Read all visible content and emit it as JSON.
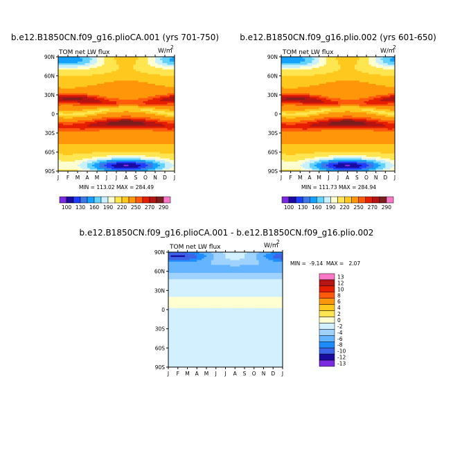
{
  "chart_data": [
    {
      "type": "heatmap",
      "title": "b.e12.B1850CN.f09_g16.plioCA.001 (yrs 701-750)",
      "left_label": "TOM net LW flux",
      "units_label": "W/m",
      "units_sup": "2",
      "x_ticks": [
        "J",
        "F",
        "M",
        "A",
        "M",
        "J",
        "J",
        "A",
        "S",
        "O",
        "N",
        "D",
        "J"
      ],
      "y_ticks": [
        "90N",
        "60N",
        "30N",
        "0",
        "30S",
        "60S",
        "90S"
      ],
      "stats_text": "MIN = 113.02  MAX = 284.49",
      "min": 113.02,
      "max": 284.49,
      "colorbar_labels": [
        "100",
        "130",
        "160",
        "190",
        "220",
        "250",
        "270",
        "290"
      ]
    },
    {
      "type": "heatmap",
      "title": "b.e12.B1850CN.f09_g16.plio.002 (yrs 601-650)",
      "left_label": "TOM net LW flux",
      "units_label": "W/m",
      "units_sup": "2",
      "x_ticks": [
        "J",
        "F",
        "M",
        "A",
        "M",
        "J",
        "J",
        "A",
        "S",
        "O",
        "N",
        "D",
        "J"
      ],
      "y_ticks": [
        "90N",
        "60N",
        "30N",
        "0",
        "30S",
        "60S",
        "90S"
      ],
      "stats_text": "MIN = 111.73  MAX = 284.94",
      "min": 111.73,
      "max": 284.94,
      "colorbar_labels": [
        "100",
        "130",
        "160",
        "190",
        "220",
        "250",
        "270",
        "290"
      ]
    },
    {
      "type": "heatmap",
      "title": "b.e12.B1850CN.f09_g16.plioCA.001 - b.e12.B1850CN.f09_g16.plio.002",
      "left_label": "TOM net LW flux",
      "units_label": "W/m",
      "units_sup": "2",
      "x_ticks": [
        "J",
        "F",
        "M",
        "A",
        "M",
        "J",
        "J",
        "A",
        "S",
        "O",
        "N",
        "D",
        "J"
      ],
      "y_ticks": [
        "90N",
        "60N",
        "30N",
        "0",
        "30S",
        "60S",
        "90S"
      ],
      "stats_text": "MIN =  -9.14  MAX =   2.07",
      "min": -9.14,
      "max": 2.07,
      "colorbar_labels": [
        "13",
        "12",
        "10",
        "8",
        "6",
        "4",
        "2",
        "0",
        "-2",
        "-4",
        "-6",
        "-8",
        "-10",
        "-12",
        "-13"
      ]
    }
  ],
  "colors": {
    "abs_levels": [
      "#7b2ae0",
      "#1a0aa0",
      "#1e3cff",
      "#3c78e6",
      "#14a0ff",
      "#64d2ff",
      "#c8f0ff",
      "#ffffd2",
      "#ffe650",
      "#ffc81e",
      "#ff960a",
      "#ff5a0a",
      "#e61e00",
      "#b41414",
      "#7a1e1e",
      "#fa78c8"
    ],
    "diff_levels": [
      "#fa78c8",
      "#b41414",
      "#e61e00",
      "#ff5a0a",
      "#ff960a",
      "#ffc81e",
      "#ffe650",
      "#ffffd2",
      "#d2f0ff",
      "#a0d2ff",
      "#64b4ff",
      "#1e8cff",
      "#3c64e6",
      "#1a0aa0",
      "#7b2ae0"
    ]
  }
}
